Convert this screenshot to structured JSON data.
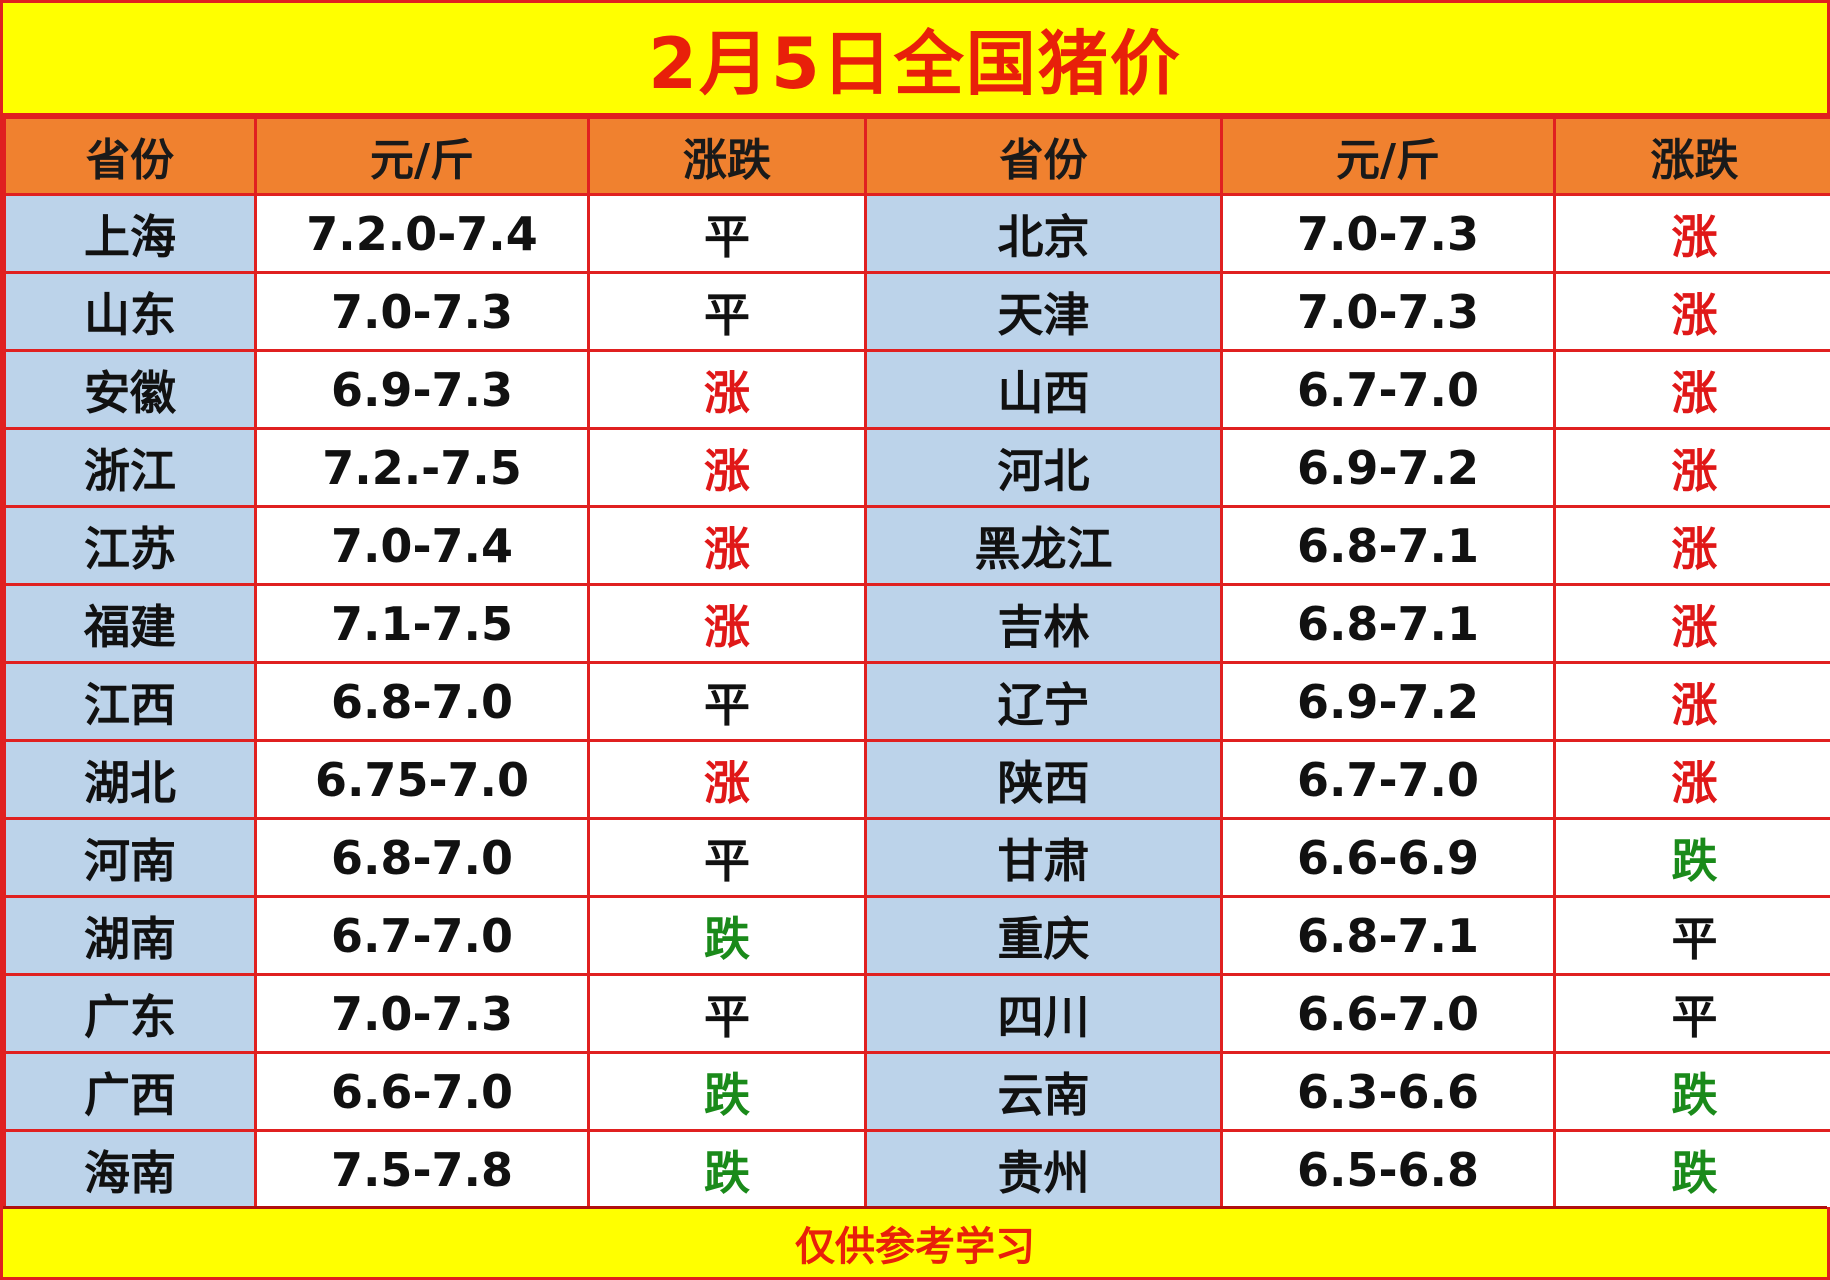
{
  "title": "2月5日全国猪价",
  "headers": [
    "省份",
    "元/斤",
    "涨跌",
    "省份",
    "元/斤",
    "涨跌"
  ],
  "colors": {
    "up": "#e01818",
    "down": "#1a8a1a",
    "flat": "#111111",
    "title": "#e8200a",
    "header_bg": "#f0812f",
    "province_bg": "#bcd3ea",
    "banner_bg": "#ffff00"
  },
  "rows": [
    {
      "left": {
        "province": "上海",
        "price": "7.2.0-7.4",
        "change": "平",
        "trend": "flat"
      },
      "right": {
        "province": "北京",
        "price": "7.0-7.3",
        "change": "涨",
        "trend": "up"
      }
    },
    {
      "left": {
        "province": "山东",
        "price": "7.0-7.3",
        "change": "平",
        "trend": "flat"
      },
      "right": {
        "province": "天津",
        "price": "7.0-7.3",
        "change": "涨",
        "trend": "up"
      }
    },
    {
      "left": {
        "province": "安徽",
        "price": "6.9-7.3",
        "change": "涨",
        "trend": "up"
      },
      "right": {
        "province": "山西",
        "price": "6.7-7.0",
        "change": "涨",
        "trend": "up"
      }
    },
    {
      "left": {
        "province": "浙江",
        "price": "7.2.-7.5",
        "change": "涨",
        "trend": "up"
      },
      "right": {
        "province": "河北",
        "price": "6.9-7.2",
        "change": "涨",
        "trend": "up"
      }
    },
    {
      "left": {
        "province": "江苏",
        "price": "7.0-7.4",
        "change": "涨",
        "trend": "up"
      },
      "right": {
        "province": "黑龙江",
        "price": "6.8-7.1",
        "change": "涨",
        "trend": "up"
      }
    },
    {
      "left": {
        "province": "福建",
        "price": "7.1-7.5",
        "change": "涨",
        "trend": "up"
      },
      "right": {
        "province": "吉林",
        "price": "6.8-7.1",
        "change": "涨",
        "trend": "up"
      }
    },
    {
      "left": {
        "province": "江西",
        "price": "6.8-7.0",
        "change": "平",
        "trend": "flat"
      },
      "right": {
        "province": "辽宁",
        "price": "6.9-7.2",
        "change": "涨",
        "trend": "up"
      }
    },
    {
      "left": {
        "province": "湖北",
        "price": "6.75-7.0",
        "change": "涨",
        "trend": "up"
      },
      "right": {
        "province": "陕西",
        "price": "6.7-7.0",
        "change": "涨",
        "trend": "up"
      }
    },
    {
      "left": {
        "province": "河南",
        "price": "6.8-7.0",
        "change": "平",
        "trend": "flat"
      },
      "right": {
        "province": "甘肃",
        "price": "6.6-6.9",
        "change": "跌",
        "trend": "down"
      }
    },
    {
      "left": {
        "province": "湖南",
        "price": "6.7-7.0",
        "change": "跌",
        "trend": "down"
      },
      "right": {
        "province": "重庆",
        "price": "6.8-7.1",
        "change": "平",
        "trend": "flat"
      }
    },
    {
      "left": {
        "province": "广东",
        "price": "7.0-7.3",
        "change": "平",
        "trend": "flat"
      },
      "right": {
        "province": "四川",
        "price": "6.6-7.0",
        "change": "平",
        "trend": "flat"
      }
    },
    {
      "left": {
        "province": "广西",
        "price": "6.6-7.0",
        "change": "跌",
        "trend": "down"
      },
      "right": {
        "province": "云南",
        "price": "6.3-6.6",
        "change": "跌",
        "trend": "down"
      }
    },
    {
      "left": {
        "province": "海南",
        "price": "7.5-7.8",
        "change": "跌",
        "trend": "down"
      },
      "right": {
        "province": "贵州",
        "price": "6.5-6.8",
        "change": "跌",
        "trend": "down"
      }
    }
  ],
  "footer": "仅供参考学习"
}
